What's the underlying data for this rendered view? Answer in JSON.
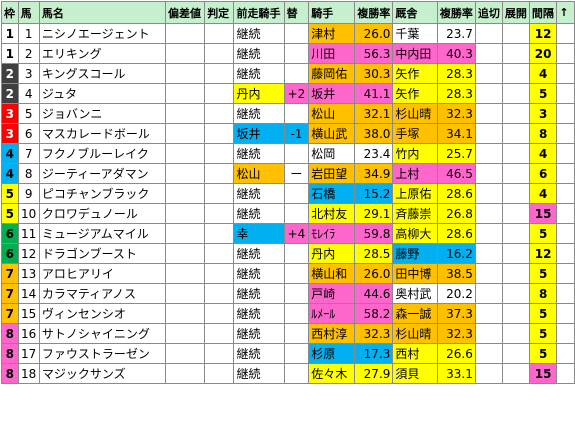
{
  "header": [
    "枠",
    "馬",
    "馬名",
    "偏差値",
    "判定",
    "前走騎手",
    "替",
    "騎手",
    "複勝率",
    "厩舎",
    "複勝率",
    "追切",
    "展開",
    "間隔",
    "↑"
  ],
  "rows": [
    {
      "waku": "1",
      "uma": "1",
      "name": "ニシノエージェント",
      "hensa": "",
      "hantei": "",
      "prev_jockey": "継続",
      "kae": "",
      "jockey": "津村",
      "j_rate": "26.0",
      "stable": "千葉",
      "s_rate": "23.7",
      "oikiri": "",
      "tenkai": "",
      "kankaku": "12",
      "wc": "#ffffff",
      "jc": "#ffc000",
      "sc": "#ffffff",
      "pc": "#ffffff",
      "kc": "#ffffff",
      "kac": "#ffff00"
    },
    {
      "waku": "1",
      "uma": "2",
      "name": "エリキング",
      "hensa": "",
      "hantei": "",
      "prev_jockey": "継続",
      "kae": "",
      "jockey": "川田",
      "j_rate": "56.3",
      "stable": "中内田",
      "s_rate": "40.3",
      "oikiri": "",
      "tenkai": "",
      "kankaku": "20",
      "wc": "#ffffff",
      "jc": "#ff66cc",
      "sc": "#ff66cc",
      "pc": "#ffffff",
      "kc": "#ffffff",
      "kac": "#ffff00"
    },
    {
      "waku": "2",
      "uma": "3",
      "name": "キングスコール",
      "hensa": "",
      "hantei": "",
      "prev_jockey": "継続",
      "kae": "",
      "jockey": "藤岡佑",
      "j_rate": "30.3",
      "stable": "矢作",
      "s_rate": "28.3",
      "oikiri": "",
      "tenkai": "",
      "kankaku": "4",
      "wc": "#404040",
      "jc": "#ffc000",
      "sc": "#ffff00",
      "pc": "#ffffff",
      "kc": "#ffffff",
      "kac": "#ffff00"
    },
    {
      "waku": "2",
      "uma": "4",
      "name": "ジュタ",
      "hensa": "",
      "hantei": "",
      "prev_jockey": "丹内",
      "kae": "+2",
      "jockey": "坂井",
      "j_rate": "41.1",
      "stable": "矢作",
      "s_rate": "28.3",
      "oikiri": "",
      "tenkai": "",
      "kankaku": "5",
      "wc": "#404040",
      "jc": "#ff66cc",
      "sc": "#ffff00",
      "pc": "#ffff00",
      "kc": "#ff66cc",
      "kac": "#ffff00"
    },
    {
      "waku": "3",
      "uma": "5",
      "name": "ジョバンニ",
      "hensa": "",
      "hantei": "",
      "prev_jockey": "継続",
      "kae": "",
      "jockey": "松山",
      "j_rate": "32.1",
      "stable": "杉山晴",
      "s_rate": "32.3",
      "oikiri": "",
      "tenkai": "",
      "kankaku": "3",
      "wc": "#ff0000",
      "jc": "#ffc000",
      "sc": "#ffc000",
      "pc": "#ffffff",
      "kc": "#ffffff",
      "kac": "#ffff00"
    },
    {
      "waku": "3",
      "uma": "6",
      "name": "マスカレードボール",
      "hensa": "",
      "hantei": "",
      "prev_jockey": "坂井",
      "kae": "-1",
      "jockey": "横山武",
      "j_rate": "38.0",
      "stable": "手塚",
      "s_rate": "34.1",
      "oikiri": "",
      "tenkai": "",
      "kankaku": "8",
      "wc": "#ff0000",
      "jc": "#ffc000",
      "sc": "#ffc000",
      "pc": "#00b0f0",
      "kc": "#00b0f0",
      "kac": "#ffff00"
    },
    {
      "waku": "4",
      "uma": "7",
      "name": "フクノブルーレイク",
      "hensa": "",
      "hantei": "",
      "prev_jockey": "継続",
      "kae": "",
      "jockey": "松岡",
      "j_rate": "23.4",
      "stable": "竹内",
      "s_rate": "25.7",
      "oikiri": "",
      "tenkai": "",
      "kankaku": "4",
      "wc": "#00b0f0",
      "jc": "#ffffff",
      "sc": "#ffff00",
      "pc": "#ffffff",
      "kc": "#ffffff",
      "kac": "#ffff00"
    },
    {
      "waku": "4",
      "uma": "8",
      "name": "ジーティーアダマン",
      "hensa": "",
      "hantei": "",
      "prev_jockey": "松山",
      "kae": "ー",
      "jockey": "岩田望",
      "j_rate": "34.9",
      "stable": "上村",
      "s_rate": "46.5",
      "oikiri": "",
      "tenkai": "",
      "kankaku": "6",
      "wc": "#00b0f0",
      "jc": "#ffc000",
      "sc": "#ff66cc",
      "pc": "#ffc000",
      "kc": "#ffffff",
      "kac": "#ffff00"
    },
    {
      "waku": "5",
      "uma": "9",
      "name": "ピコチャンブラック",
      "hensa": "",
      "hantei": "",
      "prev_jockey": "継続",
      "kae": "",
      "jockey": "石橋",
      "j_rate": "15.2",
      "stable": "上原佑",
      "s_rate": "28.6",
      "oikiri": "",
      "tenkai": "",
      "kankaku": "4",
      "wc": "#ffff00",
      "jc": "#00b0f0",
      "sc": "#ffff00",
      "pc": "#ffffff",
      "kc": "#ffffff",
      "kac": "#ffff00"
    },
    {
      "waku": "5",
      "uma": "10",
      "name": "クロワデュノール",
      "hensa": "",
      "hantei": "",
      "prev_jockey": "継続",
      "kae": "",
      "jockey": "北村友",
      "j_rate": "29.1",
      "stable": "斉藤崇",
      "s_rate": "26.8",
      "oikiri": "",
      "tenkai": "",
      "kankaku": "15",
      "wc": "#ffff00",
      "jc": "#ffff00",
      "sc": "#ffff00",
      "pc": "#ffffff",
      "kc": "#ffffff",
      "kac": "#ff66cc"
    },
    {
      "waku": "6",
      "uma": "11",
      "name": "ミュージアムマイル",
      "hensa": "",
      "hantei": "",
      "prev_jockey": "幸",
      "kae": "+4",
      "jockey": "ﾓﾚｲﾗ",
      "j_rate": "59.8",
      "stable": "高柳大",
      "s_rate": "28.6",
      "oikiri": "",
      "tenkai": "",
      "kankaku": "5",
      "wc": "#00b050",
      "jc": "#ff66cc",
      "sc": "#ffff00",
      "pc": "#00b0f0",
      "kc": "#ff66cc",
      "kac": "#ffff00"
    },
    {
      "waku": "6",
      "uma": "12",
      "name": "ドラゴンブースト",
      "hensa": "",
      "hantei": "",
      "prev_jockey": "継続",
      "kae": "",
      "jockey": "丹内",
      "j_rate": "28.5",
      "stable": "藤野",
      "s_rate": "16.2",
      "oikiri": "",
      "tenkai": "",
      "kankaku": "12",
      "wc": "#00b050",
      "jc": "#ffff00",
      "sc": "#00b0f0",
      "pc": "#ffffff",
      "kc": "#ffffff",
      "kac": "#ffff00"
    },
    {
      "waku": "7",
      "uma": "13",
      "name": "アロヒアリイ",
      "hensa": "",
      "hantei": "",
      "prev_jockey": "継続",
      "kae": "",
      "jockey": "横山和",
      "j_rate": "26.0",
      "stable": "田中博",
      "s_rate": "38.5",
      "oikiri": "",
      "tenkai": "",
      "kankaku": "5",
      "wc": "#ffc000",
      "jc": "#ffc000",
      "sc": "#ffc000",
      "pc": "#ffffff",
      "kc": "#ffffff",
      "kac": "#ffff00"
    },
    {
      "waku": "7",
      "uma": "14",
      "name": "カラマティアノス",
      "hensa": "",
      "hantei": "",
      "prev_jockey": "継続",
      "kae": "",
      "jockey": "戸崎",
      "j_rate": "44.6",
      "stable": "奥村武",
      "s_rate": "20.2",
      "oikiri": "",
      "tenkai": "",
      "kankaku": "8",
      "wc": "#ffc000",
      "jc": "#ff66cc",
      "sc": "#ffffff",
      "pc": "#ffffff",
      "kc": "#ffffff",
      "kac": "#ffff00"
    },
    {
      "waku": "7",
      "uma": "15",
      "name": "ヴィンセンシオ",
      "hensa": "",
      "hantei": "",
      "prev_jockey": "継続",
      "kae": "",
      "jockey": "ﾙﾒｰﾙ",
      "j_rate": "58.2",
      "stable": "森一誠",
      "s_rate": "37.3",
      "oikiri": "",
      "tenkai": "",
      "kankaku": "5",
      "wc": "#ffc000",
      "jc": "#ff66cc",
      "sc": "#ffc000",
      "pc": "#ffffff",
      "kc": "#ffffff",
      "kac": "#ffff00"
    },
    {
      "waku": "8",
      "uma": "16",
      "name": "サトノシャイニング",
      "hensa": "",
      "hantei": "",
      "prev_jockey": "継続",
      "kae": "",
      "jockey": "西村淳",
      "j_rate": "32.3",
      "stable": "杉山晴",
      "s_rate": "32.3",
      "oikiri": "",
      "tenkai": "",
      "kankaku": "5",
      "wc": "#ff66cc",
      "jc": "#ffc000",
      "sc": "#ffc000",
      "pc": "#ffffff",
      "kc": "#ffffff",
      "kac": "#ffff00"
    },
    {
      "waku": "8",
      "uma": "17",
      "name": "ファウストラーゼン",
      "hensa": "",
      "hantei": "",
      "prev_jockey": "継続",
      "kae": "",
      "jockey": "杉原",
      "j_rate": "17.3",
      "stable": "西村",
      "s_rate": "26.6",
      "oikiri": "",
      "tenkai": "",
      "kankaku": "5",
      "wc": "#ff66cc",
      "jc": "#00b0f0",
      "sc": "#ffff00",
      "pc": "#ffffff",
      "kc": "#ffffff",
      "kac": "#ffff00"
    },
    {
      "waku": "8",
      "uma": "18",
      "name": "マジックサンズ",
      "hensa": "",
      "hantei": "",
      "prev_jockey": "継続",
      "kae": "",
      "jockey": "佐々木",
      "j_rate": "27.9",
      "stable": "須貝",
      "s_rate": "33.1",
      "oikiri": "",
      "tenkai": "",
      "kankaku": "15",
      "wc": "#ff66cc",
      "jc": "#ffff00",
      "sc": "#ffff00",
      "pc": "#ffffff",
      "kc": "#ffffff",
      "kac": "#ff66cc"
    }
  ],
  "waku_text_white": [
    "2",
    "3"
  ]
}
